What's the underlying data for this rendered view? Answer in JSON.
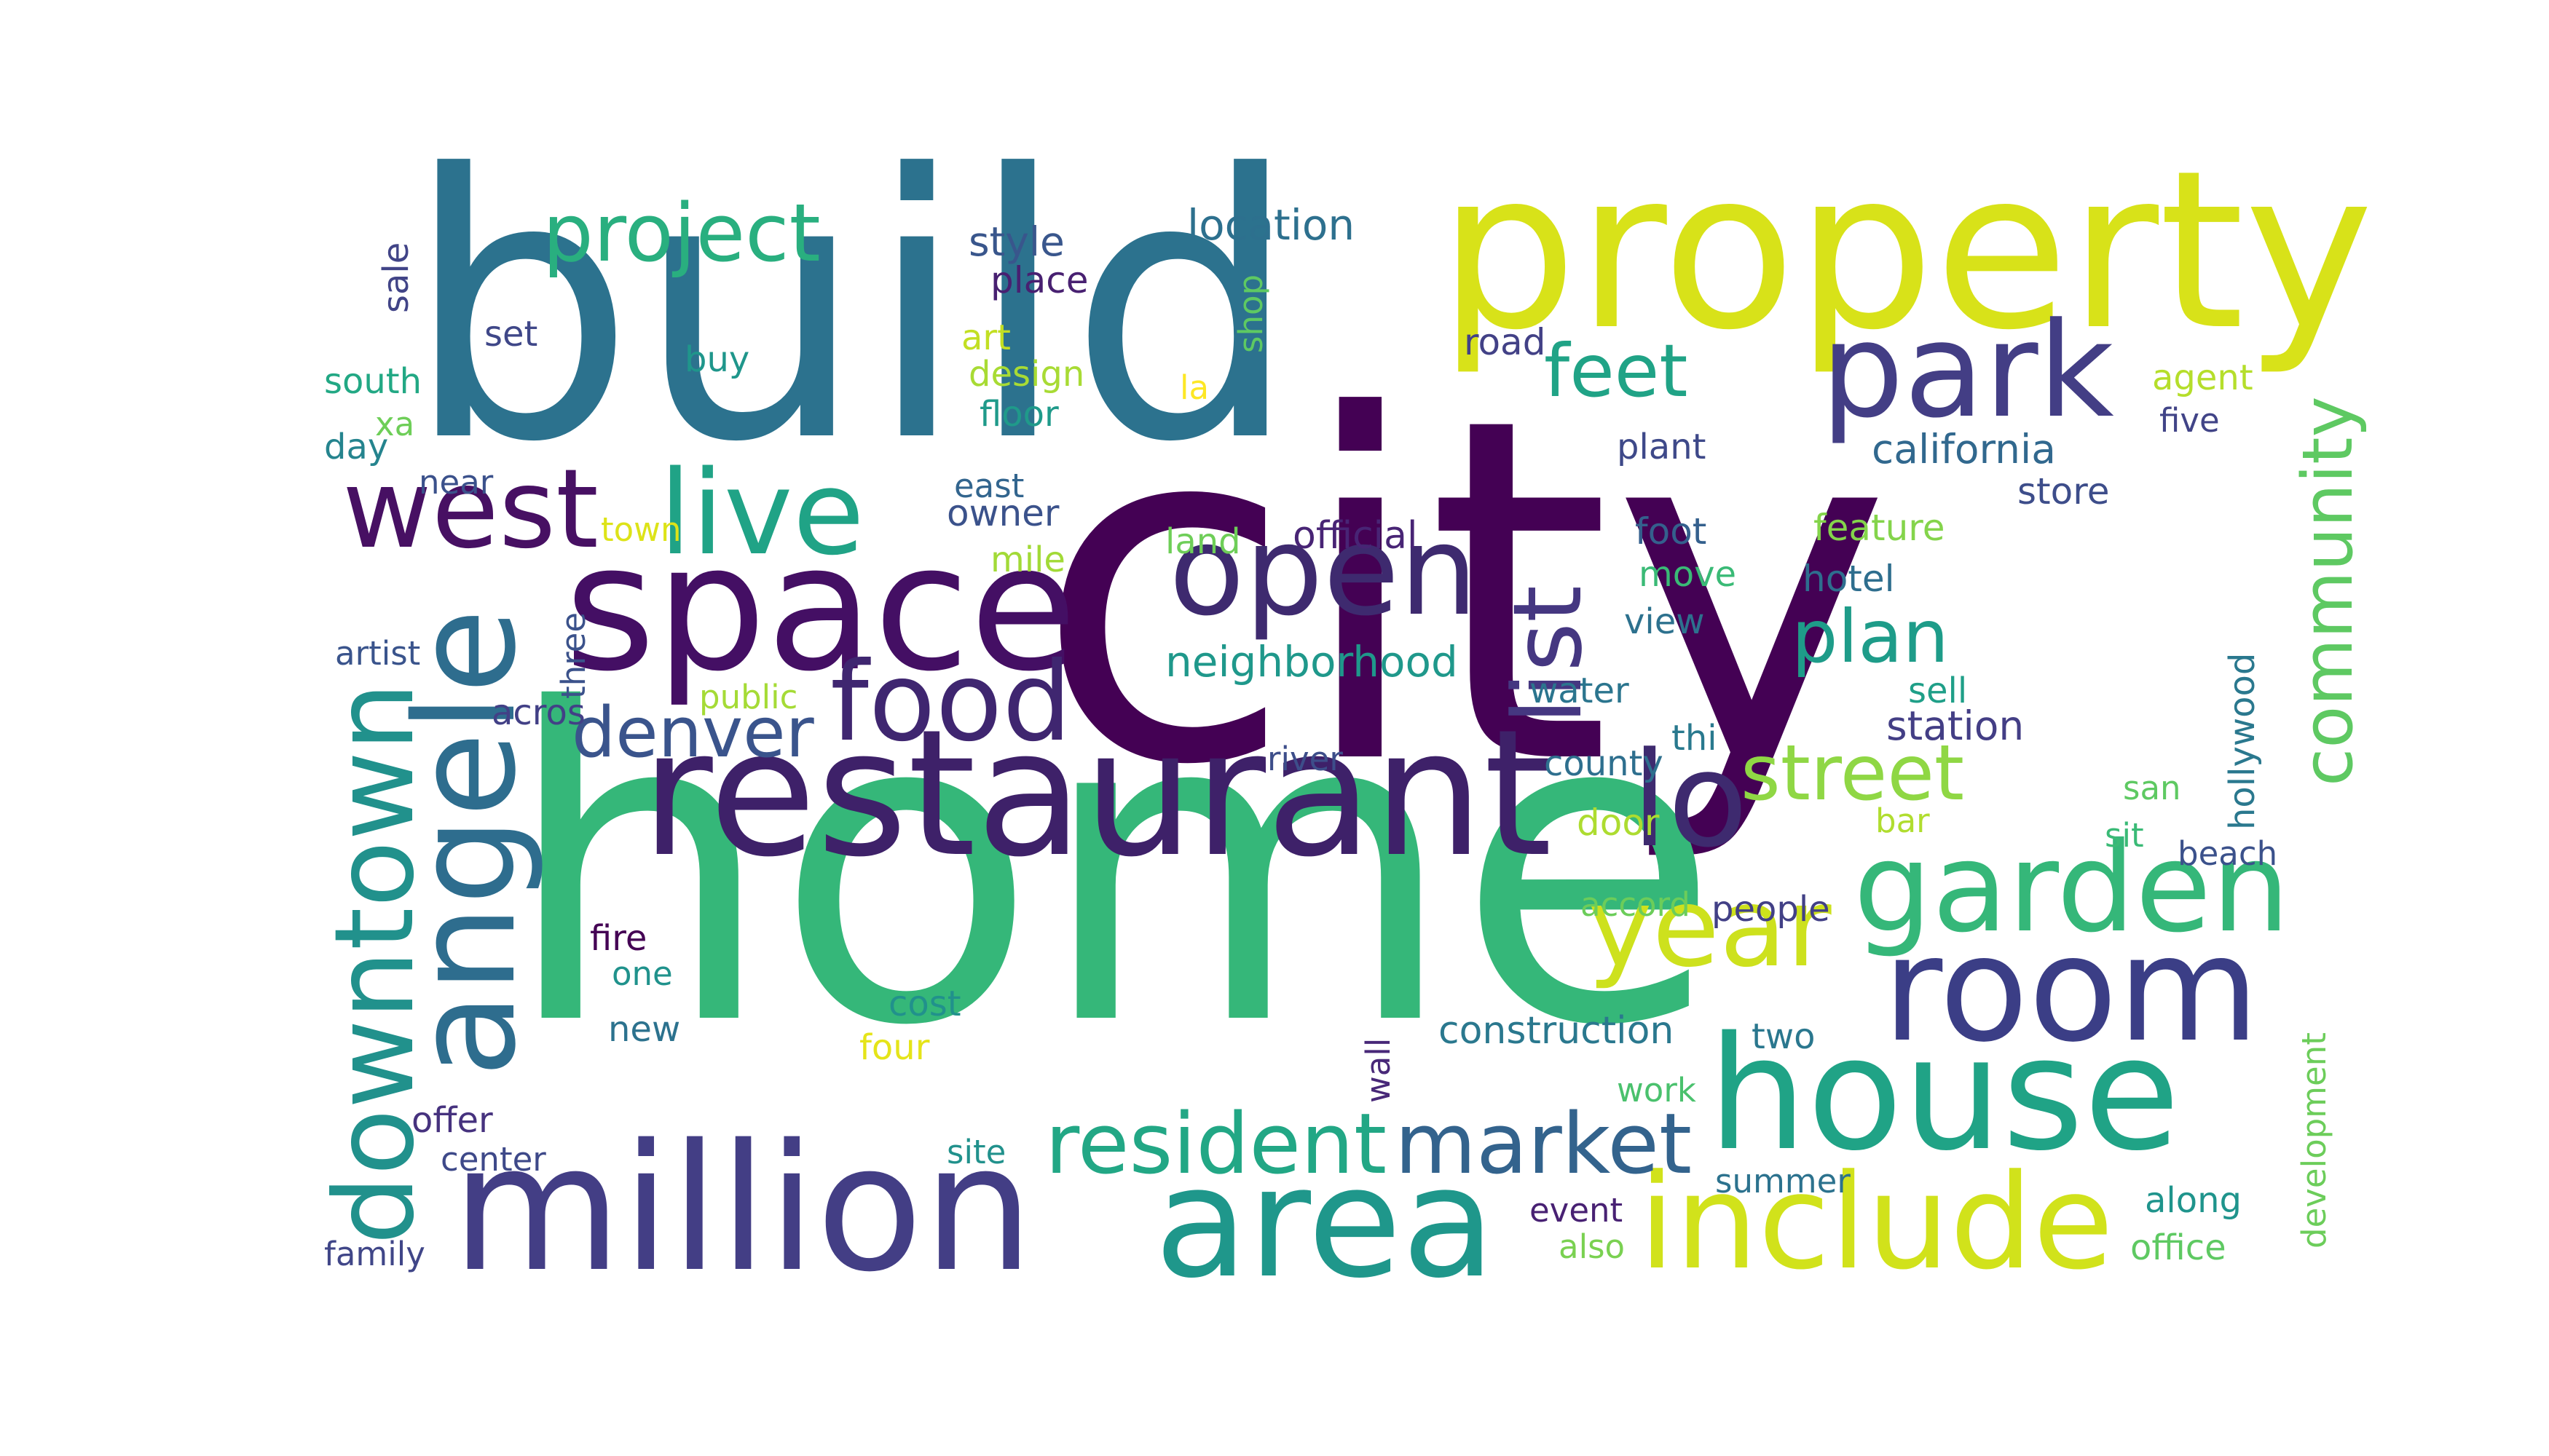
{
  "words": [
    {
      "text": "city",
      "color": "#440154"
    },
    {
      "text": "home",
      "color": "#35b779"
    },
    {
      "text": "build",
      "color": "#2c728e"
    },
    {
      "text": "property",
      "color": "#d8e219"
    },
    {
      "text": "restaurant",
      "color": "#3e2169"
    },
    {
      "text": "million",
      "color": "#433e85"
    },
    {
      "text": "space",
      "color": "#440f64"
    },
    {
      "text": "house",
      "color": "#20a386"
    },
    {
      "text": "area",
      "color": "#1f978b"
    },
    {
      "text": "room",
      "color": "#3b3e86"
    },
    {
      "text": "include",
      "color": "#d1e21b"
    },
    {
      "text": "park",
      "color": "#433e85"
    },
    {
      "text": "angele",
      "color": "#2e6d8e"
    },
    {
      "text": "garden",
      "color": "#35b779"
    },
    {
      "text": "lo",
      "color": "#3e2a6f"
    },
    {
      "text": "open",
      "color": "#3e2a6f"
    },
    {
      "text": "year",
      "color": "#cde11d"
    },
    {
      "text": "downtown",
      "color": "#21918c"
    },
    {
      "text": "live",
      "color": "#20a386"
    },
    {
      "text": "west",
      "color": "#471063"
    },
    {
      "text": "food",
      "color": "#3f2670"
    },
    {
      "text": "list",
      "color": "#453781"
    },
    {
      "text": "resident",
      "color": "#22a785"
    },
    {
      "text": "market",
      "color": "#33638d"
    },
    {
      "text": "project",
      "color": "#29af7f"
    },
    {
      "text": "feet",
      "color": "#20a386"
    },
    {
      "text": "plan",
      "color": "#1e9c89"
    },
    {
      "text": "street",
      "color": "#8fd744"
    },
    {
      "text": "community",
      "color": "#5ec962"
    },
    {
      "text": "denver",
      "color": "#3a548c"
    },
    {
      "text": "neighborhood",
      "color": "#1f988b"
    },
    {
      "text": "location",
      "color": "#2d708e"
    },
    {
      "text": "style",
      "color": "#39568c"
    },
    {
      "text": "place",
      "color": "#482071"
    },
    {
      "text": "california",
      "color": "#31688e"
    },
    {
      "text": "official",
      "color": "#482475"
    },
    {
      "text": "construction",
      "color": "#2a788e"
    },
    {
      "text": "agent",
      "color": "#b5de2b"
    },
    {
      "text": "art",
      "color": "#c2df23"
    },
    {
      "text": "design",
      "color": "#a8db34"
    },
    {
      "text": "floor",
      "color": "#1f9a8a"
    },
    {
      "text": "owner",
      "color": "#3b528b"
    },
    {
      "text": "east",
      "color": "#32658e"
    },
    {
      "text": "station",
      "color": "#433e85"
    },
    {
      "text": "store",
      "color": "#3d4d8a"
    },
    {
      "text": "feature",
      "color": "#84d44b"
    },
    {
      "text": "hotel",
      "color": "#2e6e8e"
    },
    {
      "text": "hollywood",
      "color": "#2a788e"
    },
    {
      "text": "development",
      "color": "#6ccd5a"
    },
    {
      "text": "road",
      "color": "#424186"
    },
    {
      "text": "plant",
      "color": "#3e4989"
    },
    {
      "text": "foot",
      "color": "#34608d"
    },
    {
      "text": "move",
      "color": "#3aba76"
    },
    {
      "text": "view",
      "color": "#2d718e"
    },
    {
      "text": "water",
      "color": "#2b758e"
    },
    {
      "text": "county",
      "color": "#2e6f8e"
    },
    {
      "text": "thi",
      "color": "#29798e"
    },
    {
      "text": "sell",
      "color": "#1f9f88"
    },
    {
      "text": "river",
      "color": "#3d4e8a"
    },
    {
      "text": "door",
      "color": "#addc30"
    },
    {
      "text": "accord",
      "color": "#6ccd5a"
    },
    {
      "text": "people",
      "color": "#424086"
    },
    {
      "text": "bar",
      "color": "#b0dd2f"
    },
    {
      "text": "san",
      "color": "#5ec962"
    },
    {
      "text": "sit",
      "color": "#3aba76"
    },
    {
      "text": "beach",
      "color": "#3b518b"
    },
    {
      "text": "land",
      "color": "#6ece58"
    },
    {
      "text": "mile",
      "color": "#a2da37"
    },
    {
      "text": "town",
      "color": "#dde318"
    },
    {
      "text": "public",
      "color": "#a5db36"
    },
    {
      "text": "artist",
      "color": "#3a548c"
    },
    {
      "text": "three",
      "color": "#3b528b"
    },
    {
      "text": "acros",
      "color": "#424086"
    },
    {
      "text": "near",
      "color": "#3b518b"
    },
    {
      "text": "day",
      "color": "#25848e"
    },
    {
      "text": "xa",
      "color": "#6ece58"
    },
    {
      "text": "south",
      "color": "#22a884"
    },
    {
      "text": "set",
      "color": "#3f4788"
    },
    {
      "text": "buy",
      "color": "#1f968b"
    },
    {
      "text": "shop",
      "color": "#5ec962"
    },
    {
      "text": "la",
      "color": "#fde725"
    },
    {
      "text": "sale",
      "color": "#414487"
    },
    {
      "text": "fire",
      "color": "#440154"
    },
    {
      "text": "one",
      "color": "#20928c"
    },
    {
      "text": "new",
      "color": "#2c728e"
    },
    {
      "text": "cost",
      "color": "#21918c"
    },
    {
      "text": "four",
      "color": "#e5e419"
    },
    {
      "text": "wall",
      "color": "#482878"
    },
    {
      "text": "two",
      "color": "#2a778e"
    },
    {
      "text": "work",
      "color": "#4ac16d"
    },
    {
      "text": "offer",
      "color": "#46327e"
    },
    {
      "text": "center",
      "color": "#3e4989"
    },
    {
      "text": "site",
      "color": "#21918c"
    },
    {
      "text": "summer",
      "color": "#2c728e"
    },
    {
      "text": "event",
      "color": "#482173"
    },
    {
      "text": "also",
      "color": "#7ad151"
    },
    {
      "text": "along",
      "color": "#1f948c"
    },
    {
      "text": "office",
      "color": "#5ec962"
    },
    {
      "text": "family",
      "color": "#404688"
    },
    {
      "text": "five",
      "color": "#414487"
    }
  ]
}
